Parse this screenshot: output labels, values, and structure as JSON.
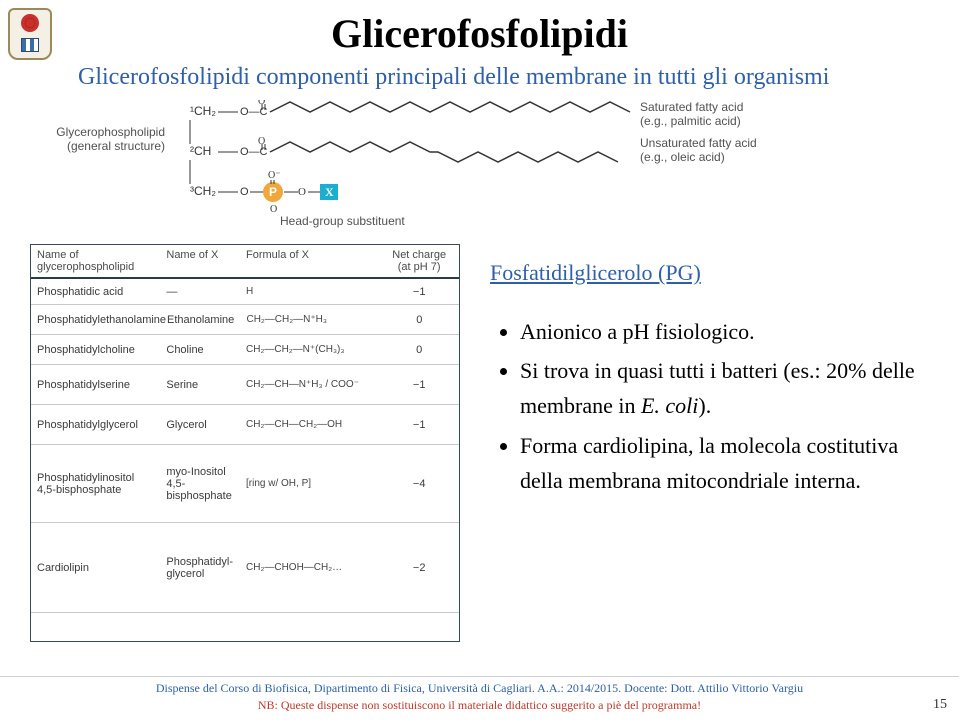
{
  "title": "Glicerofosfolipidi",
  "subtitle": "Glicerofosfolipidi componenti principali delle membrane in tutti gli organismi",
  "diagram_labels": {
    "left": "Glycerophospholipid (general structure)",
    "r1": "Saturated fatty acid",
    "r1b": "(e.g., palmitic acid)",
    "r2": "Unsaturated fatty acid",
    "r2b": "(e.g., oleic acid)",
    "bottom": "Head-group substituent"
  },
  "table": {
    "headers": {
      "c1": "Name of glycerophospholipid",
      "c2": "Name of X",
      "c3": "Formula of X",
      "c4": "Net charge (at pH 7)"
    },
    "rows": [
      {
        "c1": "Phosphatidic acid",
        "c2": "—",
        "c3": "H",
        "c4": "−1"
      },
      {
        "c1": "Phosphatidylethanolamine",
        "c2": "Ethanolamine",
        "c3": "CH₂—CH₂—N⁺H₃",
        "c4": "0"
      },
      {
        "c1": "Phosphatidylcholine",
        "c2": "Choline",
        "c3": "CH₂—CH₂—N⁺(CH₃)₃",
        "c4": "0"
      },
      {
        "c1": "Phosphatidylserine",
        "c2": "Serine",
        "c3": "CH₂—CH—N⁺H₃ / COO⁻",
        "c4": "−1"
      },
      {
        "c1": "Phosphatidylglycerol",
        "c2": "Glycerol",
        "c3": "CH₂—CH—CH₂—OH",
        "c4": "−1"
      },
      {
        "c1": "Phosphatidylinositol 4,5-bisphosphate",
        "c2": "myo-Inositol 4,5-bisphosphate",
        "c3": "[ring w/ OH, P]",
        "c4": "−4"
      },
      {
        "c1": "Cardiolipin",
        "c2": "Phosphatidyl-glycerol",
        "c3": "CH₂—CHOH—CH₂…",
        "c4": "−2"
      }
    ]
  },
  "pg_heading": "Fosfatidilglicerolo (PG)",
  "bullets": [
    "Anionico a pH fisiologico.",
    "Si trova in quasi tutti i batteri  (es.: 20% delle membrane in <i>E. coli</i>).",
    "Forma cardiolipina, la molecola costitutiva della membrana mitocondriale interna."
  ],
  "footer": {
    "line1": "Dispense del Corso di Biofisica, Dipartimento di Fisica, Università di Cagliari. A.A.: 2014/2015. Docente: Dott. Attilio Vittorio Vargiu",
    "line2": "NB: Queste dispense non sostituiscono il materiale didattico suggerito a piè del programma!"
  },
  "pagenum": "15",
  "colors": {
    "blue": "#2e5fa8",
    "red": "#c0392b",
    "cyan": "#1caecf",
    "phos_orange": "#f2a73a"
  }
}
